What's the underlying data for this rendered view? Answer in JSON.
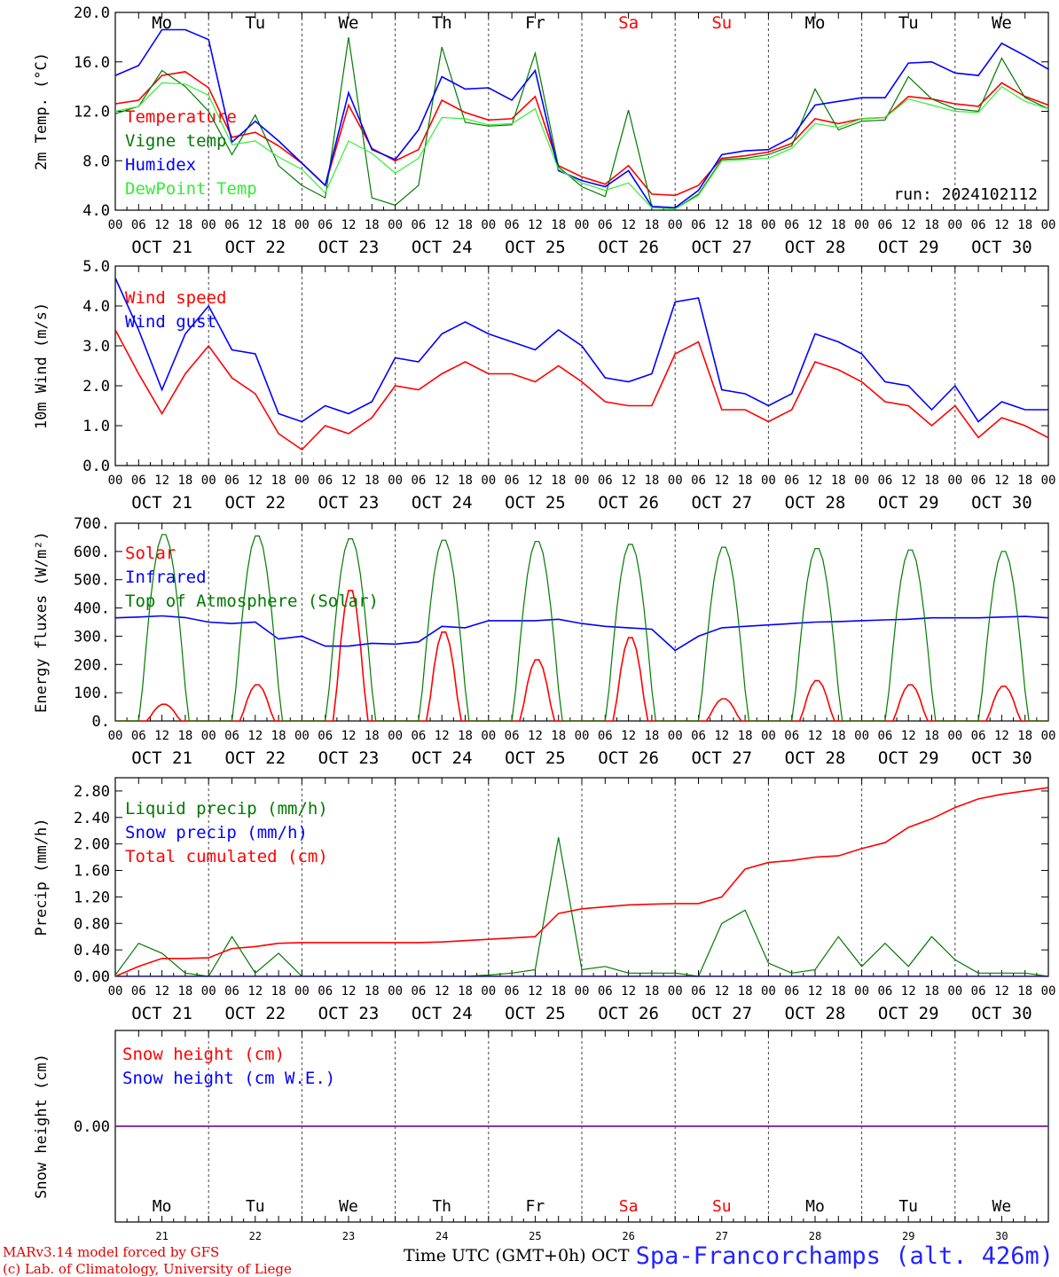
{
  "figure": {
    "credit_line1": "MARv3.14 model forced by GFS",
    "credit_line2": "(c) Lab. of Climatology, University of Liege",
    "xaxis_title": "Time UTC (GMT+0h) OCT",
    "location": "Spa-Francorchamps (alt. 426m)"
  },
  "colors": {
    "red": "#ff0000",
    "green": "#007a00",
    "blue": "#0000ff",
    "lightgreen": "#33ee33",
    "purple": "#7a1a9a",
    "grid": "#444444"
  },
  "days": {
    "weekday_labels": [
      "Mo",
      "Tu",
      "We",
      "Th",
      "Fr",
      "Sa",
      "Su",
      "Mo",
      "Tu",
      "We"
    ],
    "weekend": [
      false,
      false,
      false,
      false,
      false,
      true,
      true,
      false,
      false,
      false
    ],
    "date_labels": [
      "OCT 21",
      "OCT 22",
      "OCT 23",
      "OCT 24",
      "OCT 25",
      "OCT 26",
      "OCT 27",
      "OCT 28",
      "OCT 29",
      "OCT 30"
    ],
    "day_numbers": [
      "21",
      "22",
      "23",
      "24",
      "25",
      "26",
      "27",
      "28",
      "29",
      "30"
    ],
    "hour_ticks": [
      "00",
      "06",
      "12",
      "18"
    ],
    "hour_end": "00"
  },
  "chart_data": [
    {
      "id": "temp",
      "type": "line",
      "ylabel": "2m Temp. (°C)",
      "ylim": [
        4.0,
        20.0
      ],
      "yticks": [
        "4.0",
        "8.0",
        "12.0",
        "16.0",
        "20.0"
      ],
      "ytick_values": [
        4,
        8,
        12,
        16,
        20
      ],
      "annotation": "run: 2024102112",
      "show_weekdays": true,
      "x_hours": [
        0,
        6,
        12,
        18,
        24,
        30,
        36,
        42,
        48,
        54,
        60,
        66,
        72,
        78,
        84,
        90,
        96,
        102,
        108,
        114,
        120,
        126,
        132,
        138,
        144,
        150,
        156,
        162,
        168,
        174,
        180,
        186,
        192,
        198,
        204,
        210,
        216,
        222,
        228,
        234,
        240
      ],
      "series": [
        {
          "name": "Temperature",
          "color": "red",
          "values": [
            12.6,
            12.9,
            14.9,
            15.2,
            13.9,
            9.9,
            10.3,
            9.2,
            7.8,
            6.0,
            12.5,
            9.0,
            8.0,
            8.9,
            12.9,
            11.9,
            11.3,
            11.4,
            13.2,
            7.6,
            6.7,
            6.1,
            7.6,
            5.3,
            5.2,
            6.0,
            8.2,
            8.4,
            8.7,
            9.4,
            11.4,
            11.0,
            11.4,
            11.5,
            13.2,
            13.0,
            12.6,
            12.4,
            14.3,
            13.2,
            12.5
          ]
        },
        {
          "name": "Vigne temp",
          "color": "green",
          "values": [
            11.8,
            12.4,
            15.3,
            14.0,
            12.0,
            8.5,
            11.7,
            7.6,
            6.0,
            5.0,
            18.0,
            5.0,
            4.4,
            6.0,
            17.2,
            11.1,
            10.8,
            10.9,
            16.7,
            7.5,
            5.9,
            5.1,
            12.1,
            4.3,
            4.1,
            5.3,
            8.1,
            8.2,
            8.5,
            9.2,
            13.8,
            10.5,
            11.2,
            11.3,
            14.8,
            13.0,
            12.2,
            12.0,
            16.3,
            13.1,
            12.2
          ]
        },
        {
          "name": "Humidex",
          "color": "blue",
          "values": [
            14.9,
            15.7,
            18.6,
            18.6,
            17.8,
            9.5,
            11.2,
            9.6,
            7.8,
            6.0,
            13.5,
            8.9,
            8.1,
            10.5,
            14.8,
            13.8,
            13.9,
            12.9,
            15.3,
            7.2,
            6.4,
            5.9,
            7.2,
            4.3,
            4.2,
            5.6,
            8.5,
            8.8,
            8.9,
            9.9,
            12.5,
            12.8,
            13.1,
            13.1,
            15.9,
            16.0,
            15.1,
            14.9,
            17.5,
            16.5,
            15.4
          ]
        },
        {
          "name": "DewPoint Temp",
          "color": "lightgreen",
          "values": [
            12.0,
            12.4,
            14.3,
            14.2,
            13.3,
            9.3,
            9.6,
            8.3,
            7.3,
            5.4,
            9.6,
            8.6,
            7.0,
            8.2,
            11.5,
            11.4,
            10.9,
            11.0,
            12.2,
            7.3,
            6.2,
            5.6,
            6.2,
            4.2,
            4.1,
            5.2,
            8.0,
            8.1,
            8.2,
            9.0,
            11.0,
            10.7,
            11.4,
            11.5,
            13.0,
            12.5,
            12.0,
            11.9,
            14.0,
            12.8,
            12.2
          ]
        }
      ]
    },
    {
      "id": "wind",
      "type": "line",
      "ylabel": "10m Wind (m/s)",
      "ylim": [
        0.0,
        5.0
      ],
      "yticks": [
        "0.0",
        "1.0",
        "2.0",
        "3.0",
        "4.0",
        "5.0"
      ],
      "ytick_values": [
        0,
        1,
        2,
        3,
        4,
        5
      ],
      "x_hours": [
        0,
        6,
        12,
        18,
        24,
        30,
        36,
        42,
        48,
        54,
        60,
        66,
        72,
        78,
        84,
        90,
        96,
        102,
        108,
        114,
        120,
        126,
        132,
        138,
        144,
        150,
        156,
        162,
        168,
        174,
        180,
        186,
        192,
        198,
        204,
        210,
        216,
        222,
        228,
        234,
        240
      ],
      "series": [
        {
          "name": "Wind speed",
          "color": "red",
          "values": [
            3.4,
            2.3,
            1.3,
            2.3,
            3.0,
            2.2,
            1.8,
            0.8,
            0.4,
            1.0,
            0.8,
            1.2,
            2.0,
            1.9,
            2.3,
            2.6,
            2.3,
            2.3,
            2.1,
            2.5,
            2.1,
            1.6,
            1.5,
            1.5,
            2.8,
            3.1,
            1.4,
            1.4,
            1.1,
            1.4,
            2.6,
            2.4,
            2.1,
            1.6,
            1.5,
            1.0,
            1.5,
            0.7,
            1.2,
            1.0,
            0.7
          ]
        },
        {
          "name": "Wind gust",
          "color": "blue",
          "values": [
            4.7,
            3.4,
            1.9,
            3.3,
            4.0,
            2.9,
            2.8,
            1.3,
            1.1,
            1.5,
            1.3,
            1.6,
            2.7,
            2.6,
            3.3,
            3.6,
            3.3,
            3.1,
            2.9,
            3.4,
            3.0,
            2.2,
            2.1,
            2.3,
            4.1,
            4.2,
            1.9,
            1.8,
            1.5,
            1.8,
            3.3,
            3.1,
            2.8,
            2.1,
            2.0,
            1.4,
            2.0,
            1.1,
            1.6,
            1.4,
            1.4
          ]
        }
      ]
    },
    {
      "id": "flux",
      "type": "line",
      "ylabel": "Energy fluxes (W/m²)",
      "ylim": [
        0,
        700
      ],
      "yticks": [
        "0.",
        "100.",
        "200.",
        "300.",
        "400.",
        "500.",
        "600.",
        "700."
      ],
      "ytick_values": [
        0,
        100,
        200,
        300,
        400,
        500,
        600,
        700
      ],
      "daily_toa_peak": [
        665,
        660,
        650,
        645,
        640,
        630,
        620,
        615,
        610,
        605
      ],
      "daily_solar_peak": [
        60,
        130,
        470,
        320,
        220,
        300,
        80,
        145,
        130,
        125
      ],
      "x_hours": [
        0,
        6,
        12,
        18,
        24,
        30,
        36,
        42,
        48,
        54,
        60,
        66,
        72,
        78,
        84,
        90,
        96,
        102,
        108,
        114,
        120,
        126,
        132,
        138,
        144,
        150,
        156,
        162,
        168,
        174,
        180,
        186,
        192,
        198,
        204,
        210,
        216,
        222,
        228,
        234,
        240
      ],
      "series": [
        {
          "name": "Solar",
          "color": "red",
          "values_from": "daily_solar_peak"
        },
        {
          "name": "Infrared",
          "color": "blue",
          "values": [
            365,
            368,
            372,
            366,
            350,
            345,
            350,
            290,
            300,
            265,
            265,
            275,
            272,
            280,
            335,
            330,
            355,
            355,
            355,
            360,
            345,
            335,
            330,
            325,
            250,
            300,
            330,
            335,
            340,
            345,
            350,
            352,
            355,
            358,
            360,
            365,
            365,
            365,
            368,
            370,
            365
          ]
        },
        {
          "name": "Top of Atmosphere (Solar)",
          "color": "green",
          "values_from": "daily_toa_peak"
        }
      ]
    },
    {
      "id": "precip",
      "type": "line",
      "ylabel": "Precip (mm/h)",
      "ylim": [
        0.0,
        3.0
      ],
      "yticks": [
        "0.00",
        "0.40",
        "0.80",
        "1.20",
        "1.60",
        "2.00",
        "2.40",
        "2.80"
      ],
      "ytick_values": [
        0,
        0.4,
        0.8,
        1.2,
        1.6,
        2.0,
        2.4,
        2.8
      ],
      "x_hours": [
        0,
        6,
        12,
        18,
        24,
        30,
        36,
        42,
        48,
        54,
        60,
        66,
        72,
        78,
        84,
        90,
        96,
        102,
        108,
        114,
        120,
        126,
        132,
        138,
        144,
        150,
        156,
        162,
        168,
        174,
        180,
        186,
        192,
        198,
        204,
        210,
        216,
        222,
        228,
        234,
        240
      ],
      "series": [
        {
          "name": "Liquid precip (mm/h)",
          "color": "green",
          "values": [
            0.02,
            0.5,
            0.35,
            0.05,
            0.0,
            0.6,
            0.05,
            0.35,
            0.0,
            0.0,
            0.0,
            0.0,
            0.0,
            0.0,
            0.0,
            0.0,
            0.02,
            0.05,
            0.1,
            2.1,
            0.1,
            0.15,
            0.05,
            0.05,
            0.05,
            0.0,
            0.8,
            1.0,
            0.2,
            0.05,
            0.1,
            0.6,
            0.15,
            0.5,
            0.15,
            0.6,
            0.25,
            0.05,
            0.05,
            0.05,
            0.0
          ]
        },
        {
          "name": "Snow precip (mm/h)",
          "color": "blue",
          "values": [
            0,
            0,
            0,
            0,
            0,
            0,
            0,
            0,
            0,
            0,
            0,
            0,
            0,
            0,
            0,
            0,
            0,
            0,
            0,
            0,
            0,
            0,
            0,
            0,
            0,
            0,
            0,
            0,
            0,
            0,
            0,
            0,
            0,
            0,
            0,
            0,
            0,
            0,
            0,
            0,
            0
          ]
        },
        {
          "name": "Total cumulated (cm)",
          "color": "red",
          "values": [
            0.0,
            0.15,
            0.27,
            0.27,
            0.28,
            0.42,
            0.45,
            0.5,
            0.51,
            0.51,
            0.51,
            0.51,
            0.51,
            0.51,
            0.52,
            0.54,
            0.56,
            0.58,
            0.6,
            0.95,
            1.02,
            1.05,
            1.08,
            1.09,
            1.1,
            1.1,
            1.2,
            1.62,
            1.72,
            1.75,
            1.8,
            1.82,
            1.93,
            2.02,
            2.25,
            2.38,
            2.55,
            2.68,
            2.75,
            2.8,
            2.85
          ]
        }
      ]
    },
    {
      "id": "snow",
      "type": "line",
      "ylabel": "Snow height (cm)",
      "ylim": [
        -1.0,
        1.0
      ],
      "yticks": [
        "0.00"
      ],
      "ytick_values": [
        0
      ],
      "show_bottom_weekdays": true,
      "x_hours": [
        0,
        240
      ],
      "series": [
        {
          "name": "Snow height (cm)",
          "color": "red",
          "values": [
            0,
            0
          ]
        },
        {
          "name": "Snow height (cm W.E.)",
          "color": "blue",
          "values": [
            0,
            0
          ]
        }
      ]
    }
  ]
}
